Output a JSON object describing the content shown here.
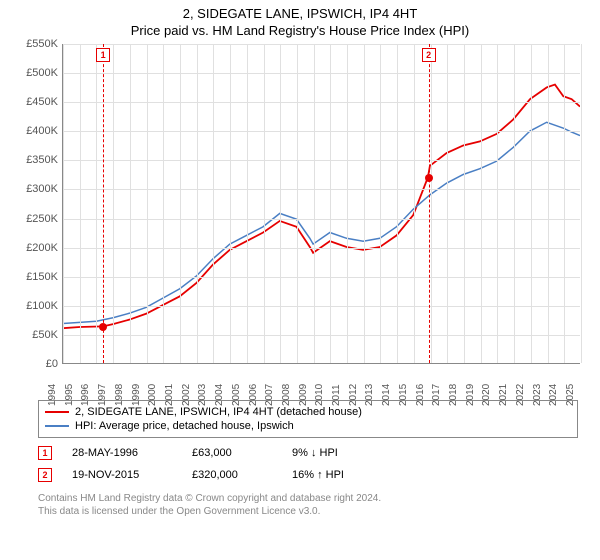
{
  "title_line1": "2, SIDEGATE LANE, IPSWICH, IP4 4HT",
  "title_line2": "Price paid vs. HM Land Registry's House Price Index (HPI)",
  "chart": {
    "type": "line",
    "ylim": [
      0,
      550000
    ],
    "ytick_step": 50000,
    "yticks": [
      "£0",
      "£50K",
      "£100K",
      "£150K",
      "£200K",
      "£250K",
      "£300K",
      "£350K",
      "£400K",
      "£450K",
      "£500K",
      "£550K"
    ],
    "xlim": [
      1994,
      2025
    ],
    "xticks": [
      1994,
      1995,
      1996,
      1997,
      1998,
      1999,
      2000,
      2001,
      2002,
      2003,
      2004,
      2005,
      2006,
      2007,
      2008,
      2009,
      2010,
      2011,
      2012,
      2013,
      2014,
      2015,
      2016,
      2017,
      2018,
      2019,
      2020,
      2021,
      2022,
      2023,
      2024,
      2025
    ],
    "grid_color": "#e0e0e0",
    "axis_color": "#888888",
    "background_color": "#ffffff",
    "series": [
      {
        "name": "price_paid",
        "label": "2, SIDEGATE LANE, IPSWICH, IP4 4HT (detached house)",
        "color": "#e60000",
        "width": 1.8,
        "points": [
          [
            1994,
            60000
          ],
          [
            1995,
            62000
          ],
          [
            1996.4,
            63000
          ],
          [
            1997,
            67000
          ],
          [
            1998,
            75000
          ],
          [
            1999,
            85000
          ],
          [
            2000,
            100000
          ],
          [
            2001,
            115000
          ],
          [
            2002,
            138000
          ],
          [
            2003,
            170000
          ],
          [
            2004,
            195000
          ],
          [
            2005,
            210000
          ],
          [
            2006,
            225000
          ],
          [
            2007,
            245000
          ],
          [
            2008,
            235000
          ],
          [
            2008.8,
            200000
          ],
          [
            2009,
            190000
          ],
          [
            2010,
            210000
          ],
          [
            2011,
            200000
          ],
          [
            2012,
            195000
          ],
          [
            2013,
            200000
          ],
          [
            2014,
            220000
          ],
          [
            2015,
            255000
          ],
          [
            2015.88,
            320000
          ],
          [
            2016,
            340000
          ],
          [
            2017,
            362000
          ],
          [
            2018,
            375000
          ],
          [
            2019,
            382000
          ],
          [
            2020,
            395000
          ],
          [
            2021,
            420000
          ],
          [
            2022,
            455000
          ],
          [
            2023,
            475000
          ],
          [
            2023.5,
            480000
          ],
          [
            2024,
            460000
          ],
          [
            2024.5,
            455000
          ],
          [
            2025,
            442000
          ]
        ]
      },
      {
        "name": "hpi",
        "label": "HPI: Average price, detached house, Ipswich",
        "color": "#4a7fc4",
        "width": 1.5,
        "points": [
          [
            1994,
            68000
          ],
          [
            1995,
            70000
          ],
          [
            1996,
            72000
          ],
          [
            1997,
            78000
          ],
          [
            1998,
            86000
          ],
          [
            1999,
            96000
          ],
          [
            2000,
            112000
          ],
          [
            2001,
            128000
          ],
          [
            2002,
            150000
          ],
          [
            2003,
            180000
          ],
          [
            2004,
            205000
          ],
          [
            2005,
            220000
          ],
          [
            2006,
            235000
          ],
          [
            2007,
            258000
          ],
          [
            2008,
            248000
          ],
          [
            2008.8,
            215000
          ],
          [
            2009,
            205000
          ],
          [
            2010,
            225000
          ],
          [
            2011,
            215000
          ],
          [
            2012,
            210000
          ],
          [
            2013,
            215000
          ],
          [
            2014,
            235000
          ],
          [
            2015,
            265000
          ],
          [
            2016,
            290000
          ],
          [
            2017,
            310000
          ],
          [
            2018,
            325000
          ],
          [
            2019,
            335000
          ],
          [
            2020,
            348000
          ],
          [
            2021,
            372000
          ],
          [
            2022,
            400000
          ],
          [
            2023,
            415000
          ],
          [
            2024,
            405000
          ],
          [
            2024.5,
            398000
          ],
          [
            2025,
            392000
          ]
        ]
      }
    ],
    "sale_markers": [
      {
        "n": "1",
        "x": 1996.4,
        "y": 63000,
        "dash_color": "#e60000",
        "box_color": "#e60000"
      },
      {
        "n": "2",
        "x": 2015.88,
        "y": 320000,
        "dash_color": "#e60000",
        "box_color": "#e60000"
      }
    ]
  },
  "legend": {
    "items": [
      {
        "color": "#e60000",
        "label": "2, SIDEGATE LANE, IPSWICH, IP4 4HT (detached house)"
      },
      {
        "color": "#4a7fc4",
        "label": "HPI: Average price, detached house, Ipswich"
      }
    ]
  },
  "sales": [
    {
      "n": "1",
      "box_color": "#e60000",
      "date": "28-MAY-1996",
      "price": "£63,000",
      "pct": "9% ↓ HPI"
    },
    {
      "n": "2",
      "box_color": "#e60000",
      "date": "19-NOV-2015",
      "price": "£320,000",
      "pct": "16% ↑ HPI"
    }
  ],
  "footer_line1": "Contains HM Land Registry data © Crown copyright and database right 2024.",
  "footer_line2": "This data is licensed under the Open Government Licence v3.0."
}
